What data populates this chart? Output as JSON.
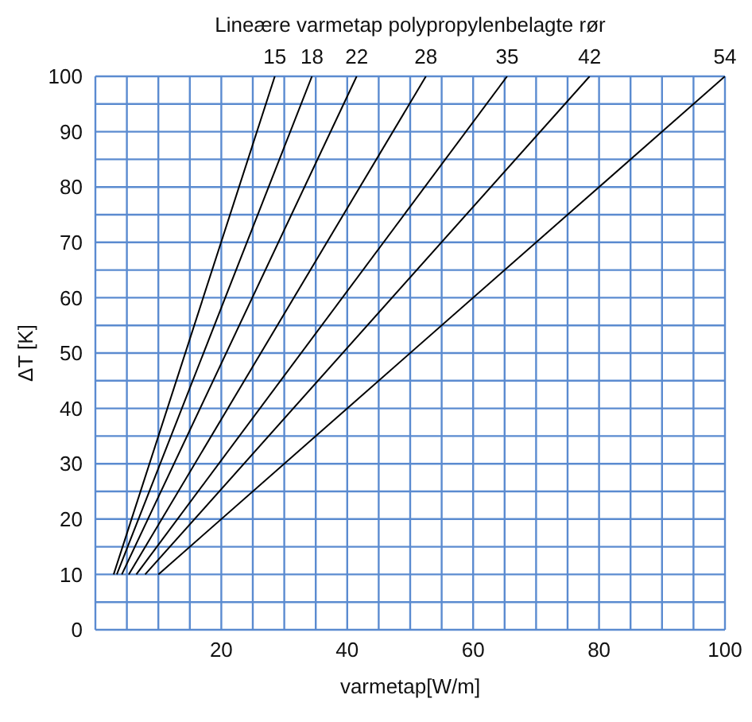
{
  "chart_data": {
    "type": "line",
    "title": "Lineære varmetap polypropylenbelagte rør",
    "xlabel": "varmetap[W/m]",
    "ylabel": "ΔT [K]",
    "series": [
      {
        "name": "15",
        "color": "#000000",
        "x": [
          2.9,
          28.5
        ],
        "values": [
          10,
          100
        ]
      },
      {
        "name": "18",
        "color": "#000000",
        "x": [
          3.4,
          34.4
        ],
        "values": [
          10,
          100
        ]
      },
      {
        "name": "22",
        "color": "#000000",
        "x": [
          4.2,
          41.5
        ],
        "values": [
          10,
          100
        ]
      },
      {
        "name": "28",
        "color": "#000000",
        "x": [
          5.3,
          52.5
        ],
        "values": [
          10,
          100
        ]
      },
      {
        "name": "35",
        "color": "#000000",
        "x": [
          6.5,
          65.4
        ],
        "values": [
          10,
          100
        ]
      },
      {
        "name": "42",
        "color": "#000000",
        "x": [
          7.9,
          78.5
        ],
        "values": [
          10,
          100
        ]
      },
      {
        "name": "54",
        "color": "#000000",
        "x": [
          10,
          100
        ],
        "values": [
          10,
          100
        ]
      }
    ],
    "xlim": [
      0,
      100
    ],
    "xticks": [
      {
        "value": 0,
        "label": null
      },
      {
        "value": 5,
        "label": null
      },
      {
        "value": 10,
        "label": null
      },
      {
        "value": 15,
        "label": null
      },
      20,
      {
        "value": 25,
        "label": null
      },
      {
        "value": 30,
        "label": null
      },
      {
        "value": 35,
        "label": null
      },
      40,
      {
        "value": 45,
        "label": null
      },
      {
        "value": 50,
        "label": null
      },
      {
        "value": 55,
        "label": null
      },
      60,
      {
        "value": 65,
        "label": null
      },
      {
        "value": 70,
        "label": null
      },
      {
        "value": 75,
        "label": null
      },
      80,
      {
        "value": 85,
        "label": null
      },
      {
        "value": 90,
        "label": null
      },
      {
        "value": 95,
        "label": null
      },
      100
    ],
    "ylim": [
      0,
      100
    ],
    "yticks": [
      0,
      {
        "value": 5,
        "label": null
      },
      10,
      {
        "value": 15,
        "label": null
      },
      20,
      {
        "value": 25,
        "label": null
      },
      30,
      {
        "value": 35,
        "label": null
      },
      40,
      {
        "value": 45,
        "label": null
      },
      50,
      {
        "value": 55,
        "label": null
      },
      60,
      {
        "value": 65,
        "label": null
      },
      70,
      {
        "value": 75,
        "label": null
      },
      80,
      {
        "value": 85,
        "label": null
      },
      90,
      {
        "value": 95,
        "label": null
      },
      100
    ],
    "grid": true,
    "marker": "none",
    "line_style": "solid",
    "legend": false
  }
}
